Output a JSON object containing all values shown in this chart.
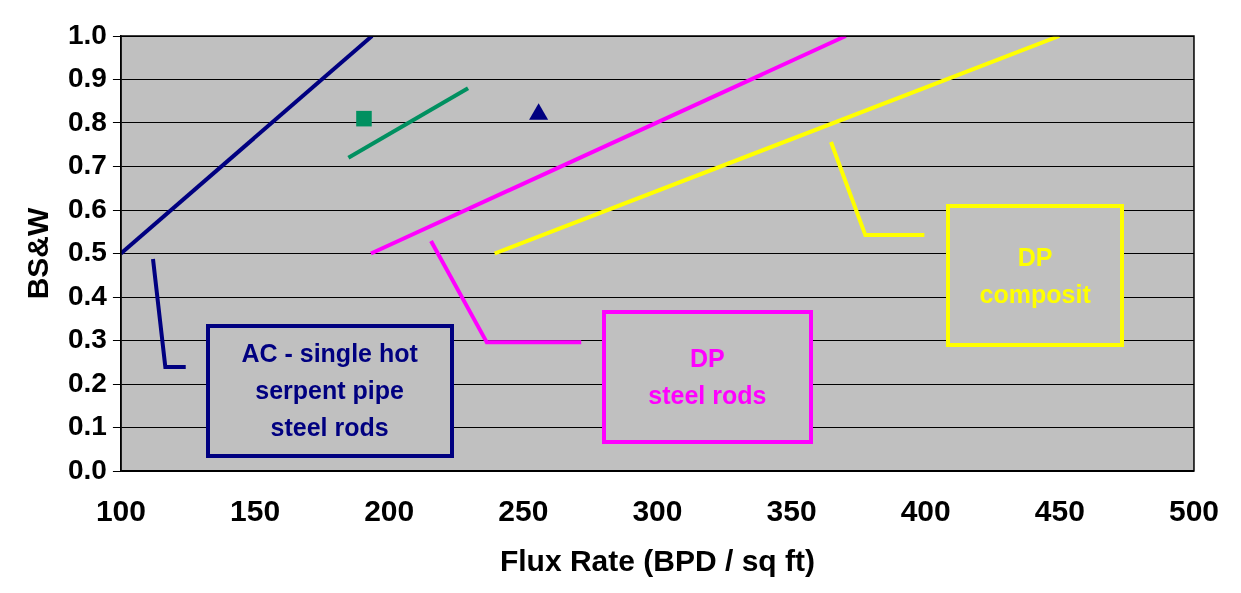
{
  "chart_data": {
    "type": "line",
    "xlabel": "Flux Rate (BPD / sq ft)",
    "ylabel": "BS&W",
    "xlim": [
      100,
      500
    ],
    "xticks": [
      100,
      150,
      200,
      250,
      300,
      350,
      400,
      450,
      500
    ],
    "ylim": [
      0,
      1
    ],
    "yticks": [
      {
        "value": 0,
        "label": "0.0"
      },
      {
        "value": 0.1,
        "label": "0.1"
      },
      {
        "value": 0.2,
        "label": "0.2"
      },
      {
        "value": 0.3,
        "label": "0.3"
      },
      {
        "value": 0.4,
        "label": "0.4"
      },
      {
        "value": 0.5,
        "label": "0.5"
      },
      {
        "value": 0.6,
        "label": "0.6"
      },
      {
        "value": 0.7,
        "label": "0.7"
      },
      {
        "value": 0.8,
        "label": "0.8"
      },
      {
        "value": 0.9,
        "label": "0.9"
      },
      {
        "value": 1,
        "label": "1.0"
      }
    ],
    "grid": "y",
    "legend": false,
    "series": [
      {
        "color": "#000080",
        "x": [
          100,
          193.6
        ],
        "values": [
          0.5,
          1.0
        ]
      },
      {
        "color": "#009060",
        "x": [
          184.8,
          229.4
        ],
        "values": [
          0.72,
          0.88
        ]
      },
      {
        "color": "#ff00ff",
        "x": [
          193.2,
          370.2
        ],
        "values": [
          0.5,
          1.0
        ]
      },
      {
        "color": "#ffff00",
        "x": [
          239.3,
          449.8
        ],
        "values": [
          0.5,
          1.0
        ]
      },
      {
        "type": "scatter",
        "color": "#009060",
        "marker": "square",
        "x": [
          190.6
        ],
        "values": [
          0.81
        ]
      },
      {
        "type": "scatter",
        "color": "#000080",
        "marker": "triangle",
        "x": [
          255.7
        ],
        "values": [
          0.82
        ]
      }
    ],
    "annotations": [
      "AC - single hot\nserpent pipe\nsteel rods",
      "DP\nsteel rods",
      "DP\ncomposit"
    ]
  }
}
